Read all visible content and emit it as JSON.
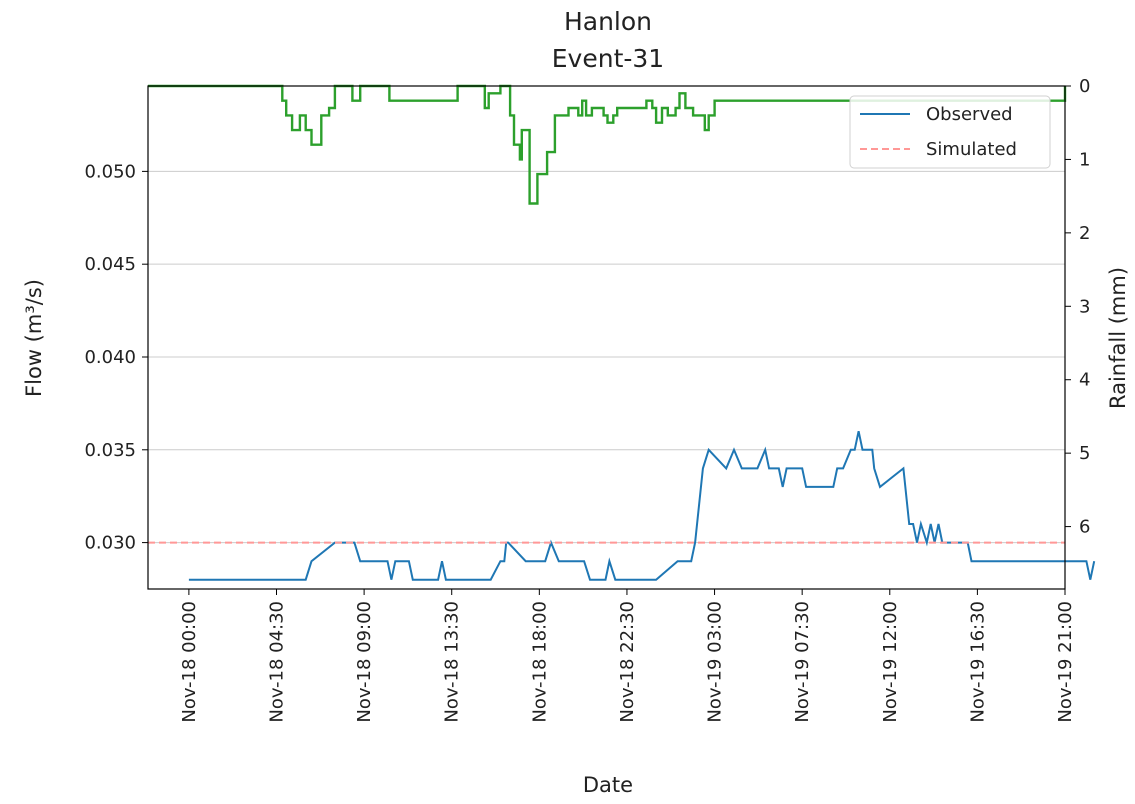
{
  "chart_data": {
    "type": "line",
    "title": "Hanlon",
    "subtitle": "Event-31",
    "xlabel": "Date",
    "ylabel": "Flow (m³/s)",
    "y2label": "Rainfall (mm)",
    "ylim": [
      0.0275,
      0.0546
    ],
    "y2lim": [
      6.85,
      0
    ],
    "y2_inverted": true,
    "xlim_hours": [
      -2.1,
      45.0
    ],
    "x_ticks": [
      "Nov-18 00:00",
      "Nov-18 04:30",
      "Nov-18 09:00",
      "Nov-18 13:30",
      "Nov-18 18:00",
      "Nov-18 22:30",
      "Nov-19 03:00",
      "Nov-19 07:30",
      "Nov-19 12:00",
      "Nov-19 16:30",
      "Nov-19 21:00"
    ],
    "y_ticks": [
      "0.030",
      "0.035",
      "0.040",
      "0.045",
      "0.050"
    ],
    "y2_ticks": [
      "0",
      "1",
      "2",
      "3",
      "4",
      "5",
      "6"
    ],
    "grid": "horizontal",
    "legend": {
      "position": "top-right",
      "entries": [
        "Observed",
        "Simulated"
      ]
    },
    "colors": {
      "observed": "#1f77b4",
      "simulated": "#ff9896",
      "rainfall": "#2ca02c",
      "grid": "#cccccc"
    },
    "series": [
      {
        "name": "Observed",
        "axis": "left",
        "style": "solid",
        "x": [
          0,
          6,
          6.3,
          7.5,
          7.8,
          8.5,
          8.8,
          10,
          10.2,
          10.4,
          10.6,
          11.3,
          11.5,
          11.7,
          12.8,
          13,
          13.2,
          14,
          15.5,
          16,
          16.2,
          16.3,
          16.4,
          17.3,
          17.6,
          18,
          18.3,
          18.6,
          19,
          19.4,
          20.3,
          20.6,
          21,
          21.4,
          21.6,
          21.9,
          22.2,
          23.7,
          24,
          25.1,
          25.8,
          26,
          26.4,
          26.7,
          27.6,
          28,
          28.4,
          28.9,
          29.2,
          29.6,
          29.8,
          30.1,
          30.3,
          30.5,
          30.7,
          31.1,
          31.5,
          31.7,
          32.8,
          33.1,
          33.3,
          33.6,
          34,
          34.2,
          34.4,
          34.6,
          35.1,
          35.2,
          35.5,
          36.7,
          37,
          37.2,
          37.4,
          37.6,
          37.9,
          38.1,
          38.3,
          38.5,
          38.7,
          40,
          40.2,
          46.1,
          46.3,
          46.5
        ],
        "y": [
          0.028,
          0.028,
          0.029,
          0.03,
          0.03,
          0.03,
          0.029,
          0.029,
          0.029,
          0.028,
          0.029,
          0.029,
          0.028,
          0.028,
          0.028,
          0.029,
          0.028,
          0.028,
          0.028,
          0.029,
          0.029,
          0.03,
          0.03,
          0.029,
          0.029,
          0.029,
          0.029,
          0.03,
          0.029,
          0.029,
          0.029,
          0.028,
          0.028,
          0.028,
          0.029,
          0.028,
          0.028,
          0.028,
          0.028,
          0.029,
          0.029,
          0.03,
          0.034,
          0.035,
          0.034,
          0.035,
          0.034,
          0.034,
          0.034,
          0.035,
          0.034,
          0.034,
          0.034,
          0.033,
          0.034,
          0.034,
          0.034,
          0.033,
          0.033,
          0.033,
          0.034,
          0.034,
          0.035,
          0.035,
          0.036,
          0.035,
          0.035,
          0.034,
          0.033,
          0.034,
          0.031,
          0.031,
          0.03,
          0.031,
          0.03,
          0.031,
          0.03,
          0.031,
          0.03,
          0.03,
          0.029,
          0.029,
          0.028,
          0.029
        ]
      },
      {
        "name": "Simulated",
        "axis": "left",
        "style": "dashed",
        "x": [
          -2.1,
          45.0
        ],
        "y": [
          0.03,
          0.03
        ]
      },
      {
        "name": "",
        "axis": "right",
        "style": "step",
        "x": [
          -2.1,
          4.5,
          4.8,
          5.0,
          5.3,
          5.7,
          6.0,
          6.3,
          6.8,
          7.2,
          7.5,
          8.1,
          8.4,
          8.8,
          9.8,
          10.3,
          13.8,
          14.1,
          14.8,
          15.2,
          15.4,
          16.0,
          16.5,
          16.7,
          17.0,
          17.1,
          17.5,
          17.9,
          18.4,
          18.8,
          19.5,
          20.0,
          20.2,
          20.4,
          20.7,
          21.3,
          21.5,
          21.8,
          22.0,
          23.5,
          23.8,
          24.0,
          24.3,
          24.6,
          25.0,
          25.2,
          25.5,
          25.9,
          26.5,
          26.7,
          27.0,
          45.0
        ],
        "y": [
          0,
          0,
          0.2,
          0.4,
          0.6,
          0.4,
          0.6,
          0.8,
          0.4,
          0.3,
          0,
          0,
          0.2,
          0,
          0,
          0.2,
          0,
          0,
          0,
          0.3,
          0.1,
          0,
          0.4,
          0.8,
          1.0,
          0.6,
          1.6,
          1.2,
          0.9,
          0.4,
          0.3,
          0.4,
          0.2,
          0.4,
          0.3,
          0.4,
          0.5,
          0.4,
          0.3,
          0.2,
          0.3,
          0.5,
          0.3,
          0.4,
          0.3,
          0.1,
          0.3,
          0.4,
          0.6,
          0.4,
          0.2,
          0
        ]
      }
    ]
  }
}
